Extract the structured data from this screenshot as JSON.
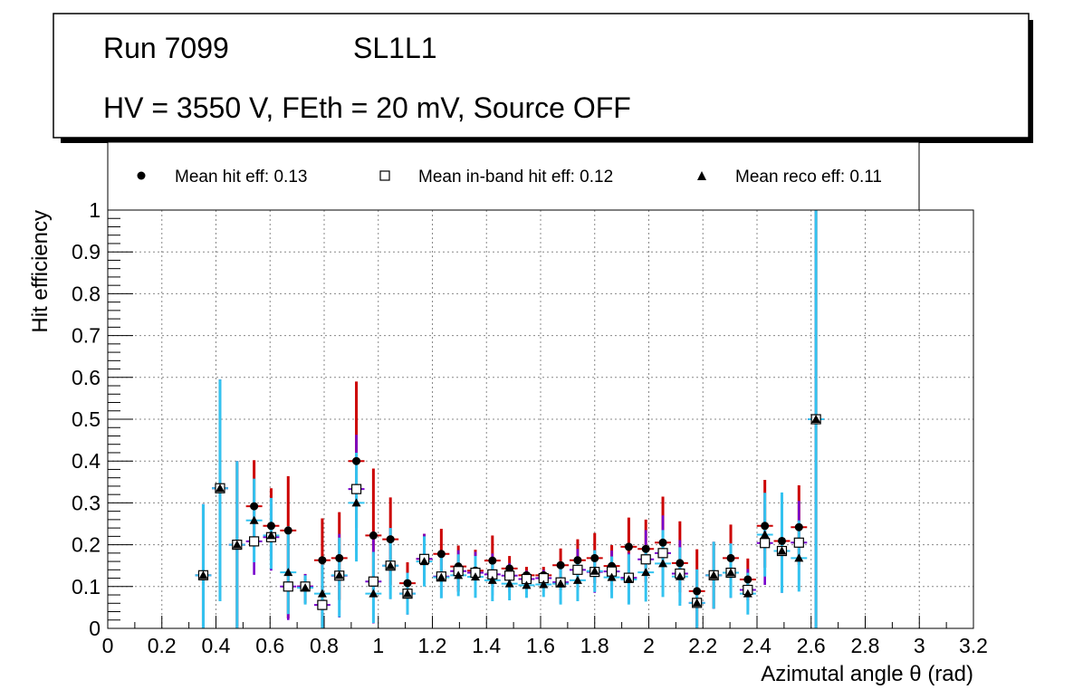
{
  "header": {
    "run_label": "Run 7099",
    "chamber_label": "SL1L1",
    "conditions_label": "HV = 3550 V, FEth = 20 mV, Source OFF"
  },
  "legend": {
    "hit": "Mean hit  eff: 0.13",
    "inband": "Mean in-band hit eff: 0.12",
    "reco": "Mean reco eff: 0.11"
  },
  "colors": {
    "hit_error": "#cc0000",
    "inband_error": "#7700cc",
    "reco_error": "#33c3f0",
    "marker": "#000000",
    "inband_fill": "#ffffff",
    "grid": "#888888"
  },
  "chart_data": {
    "type": "scatter",
    "xlabel": "Azimutal angle θ (rad)",
    "ylabel": "Hit efficiency",
    "xlim": [
      0,
      3.2
    ],
    "ylim": [
      0,
      1
    ],
    "xticks": [
      "0",
      "0.2",
      "0.4",
      "0.6",
      "0.8",
      "1",
      "1.2",
      "1.4",
      "1.6",
      "1.8",
      "2",
      "2.2",
      "2.4",
      "2.6",
      "2.8",
      "3",
      "3.2"
    ],
    "yticks": [
      "0",
      "0.1",
      "0.2",
      "0.3",
      "0.4",
      "0.5",
      "0.6",
      "0.7",
      "0.8",
      "0.9",
      "1"
    ],
    "grid": true,
    "bin_half_width": 0.03,
    "x": [
      0.353,
      0.415,
      0.478,
      0.541,
      0.604,
      0.667,
      0.73,
      0.793,
      0.856,
      0.919,
      0.982,
      1.045,
      1.108,
      1.17,
      1.233,
      1.296,
      1.359,
      1.422,
      1.485,
      1.548,
      1.611,
      1.674,
      1.737,
      1.8,
      1.863,
      1.926,
      1.989,
      2.052,
      2.115,
      2.178,
      2.24,
      2.303,
      2.366,
      2.429,
      2.492,
      2.555,
      2.618
    ],
    "series": [
      {
        "name": "Mean hit  eff: 0.13",
        "marker": "circle",
        "values": [
          0.127,
          0.335,
          0.2,
          0.292,
          0.245,
          0.234,
          0.1,
          0.163,
          0.168,
          0.4,
          0.222,
          0.213,
          0.108,
          0.166,
          0.178,
          0.148,
          0.138,
          0.162,
          0.143,
          0.127,
          0.127,
          0.151,
          0.163,
          0.168,
          0.149,
          0.195,
          0.19,
          0.205,
          0.156,
          0.089,
          0.127,
          0.168,
          0.117,
          0.245,
          0.209,
          0.242,
          0.5
        ],
        "err_low": [
          0.127,
          0.27,
          0.2,
          0.1,
          0.08,
          0.21,
          0.04,
          0.16,
          0.1,
          0.16,
          0.15,
          0.11,
          0.06,
          0.06,
          0.06,
          0.06,
          0.05,
          0.06,
          0.04,
          0.03,
          0.03,
          0.06,
          0.06,
          0.06,
          0.05,
          0.08,
          0.08,
          0.09,
          0.07,
          0.089,
          0.08,
          0.07,
          0.05,
          0.1,
          0.12,
          0.09,
          0.5
        ],
        "err_high": [
          0.17,
          0.26,
          0.2,
          0.11,
          0.09,
          0.13,
          0.03,
          0.1,
          0.11,
          0.19,
          0.16,
          0.1,
          0.05,
          0.06,
          0.06,
          0.05,
          0.05,
          0.06,
          0.03,
          0.02,
          0.02,
          0.04,
          0.05,
          0.06,
          0.05,
          0.07,
          0.07,
          0.11,
          0.1,
          0.1,
          0.08,
          0.08,
          0.05,
          0.11,
          0.11,
          0.1,
          0.5
        ]
      },
      {
        "name": "Mean in-band hit eff: 0.12",
        "marker": "open-square",
        "values": [
          0.127,
          0.335,
          0.2,
          0.208,
          0.218,
          0.1,
          0.1,
          0.056,
          0.126,
          0.333,
          0.112,
          0.15,
          0.083,
          0.166,
          0.124,
          0.137,
          0.133,
          0.129,
          0.126,
          0.118,
          0.12,
          0.11,
          0.14,
          0.135,
          0.136,
          0.121,
          0.165,
          0.18,
          0.131,
          0.061,
          0.127,
          0.133,
          0.092,
          0.204,
          0.185,
          0.205,
          0.5
        ],
        "err_low": [
          0.127,
          0.27,
          0.2,
          0.08,
          0.08,
          0.08,
          0.04,
          0.056,
          0.1,
          0.15,
          0.1,
          0.08,
          0.05,
          0.06,
          0.05,
          0.05,
          0.05,
          0.05,
          0.04,
          0.03,
          0.03,
          0.05,
          0.05,
          0.05,
          0.05,
          0.06,
          0.07,
          0.08,
          0.07,
          0.061,
          0.08,
          0.06,
          0.05,
          0.1,
          0.1,
          0.09,
          0.5
        ],
        "err_high": [
          0.17,
          0.26,
          0.2,
          0.09,
          0.09,
          0.1,
          0.03,
          0.08,
          0.1,
          0.13,
          0.12,
          0.09,
          0.05,
          0.06,
          0.05,
          0.05,
          0.05,
          0.05,
          0.03,
          0.02,
          0.02,
          0.04,
          0.05,
          0.05,
          0.05,
          0.06,
          0.07,
          0.09,
          0.08,
          0.08,
          0.08,
          0.07,
          0.05,
          0.1,
          0.1,
          0.1,
          0.5
        ]
      },
      {
        "name": "Mean reco eff: 0.11",
        "marker": "triangle",
        "values": [
          0.127,
          0.335,
          0.2,
          0.258,
          0.222,
          0.134,
          0.097,
          0.083,
          0.127,
          0.3,
          0.083,
          0.15,
          0.083,
          0.16,
          0.122,
          0.127,
          0.123,
          0.115,
          0.107,
          0.103,
          0.105,
          0.107,
          0.115,
          0.137,
          0.122,
          0.117,
          0.134,
          0.155,
          0.124,
          0.061,
          0.127,
          0.133,
          0.083,
          0.224,
          0.185,
          0.168,
          0.5
        ],
        "err_low": [
          0.127,
          0.27,
          0.2,
          0.1,
          0.08,
          0.1,
          0.04,
          0.083,
          0.1,
          0.14,
          0.07,
          0.08,
          0.05,
          0.06,
          0.05,
          0.05,
          0.05,
          0.05,
          0.04,
          0.03,
          0.03,
          0.05,
          0.05,
          0.05,
          0.05,
          0.06,
          0.07,
          0.08,
          0.07,
          0.061,
          0.08,
          0.06,
          0.05,
          0.1,
          0.1,
          0.08,
          0.5
        ],
        "err_high": [
          0.17,
          0.26,
          0.2,
          0.1,
          0.09,
          0.11,
          0.03,
          0.07,
          0.09,
          0.12,
          0.1,
          0.09,
          0.05,
          0.06,
          0.05,
          0.05,
          0.05,
          0.05,
          0.03,
          0.02,
          0.02,
          0.04,
          0.05,
          0.05,
          0.05,
          0.06,
          0.06,
          0.08,
          0.07,
          0.08,
          0.08,
          0.07,
          0.05,
          0.1,
          0.14,
          0.09,
          0.5
        ]
      }
    ]
  }
}
